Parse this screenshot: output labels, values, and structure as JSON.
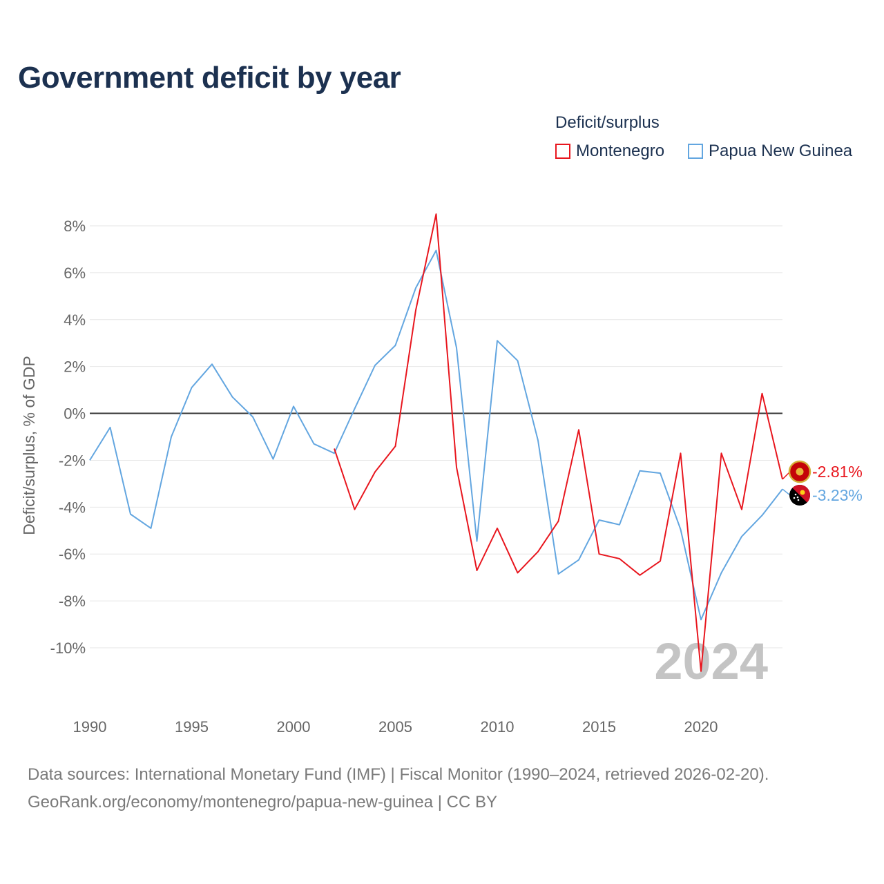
{
  "title": "Government deficit by year",
  "legend": {
    "title": "Deficit/surplus",
    "items": [
      {
        "label": "Montenegro",
        "color": "#e8161e"
      },
      {
        "label": "Papua New Guinea",
        "color": "#63a6e0"
      }
    ]
  },
  "chart_data": {
    "type": "line",
    "title": "Government deficit by year",
    "xlabel": "",
    "ylabel": "Deficit/surplus, % of GDP",
    "xlim": [
      1990,
      2024
    ],
    "ylim": [
      -12,
      8.5
    ],
    "x_ticks": [
      1990,
      1995,
      2000,
      2005,
      2010,
      2015,
      2020
    ],
    "y_ticks": [
      8,
      6,
      4,
      2,
      0,
      -2,
      -4,
      -6,
      -8,
      -10
    ],
    "y_tick_labels": [
      "8%",
      "6%",
      "4%",
      "2%",
      "0%",
      "-2%",
      "-4%",
      "-6%",
      "-8%",
      "-10%"
    ],
    "grid": true,
    "legend_position": "top-right",
    "year_watermark": "2024",
    "series": [
      {
        "name": "Montenegro",
        "color": "#e8161e",
        "end_label": "-2.81%",
        "end_marker_icon": "montenegro-flag-icon",
        "x": [
          2002,
          2003,
          2004,
          2005,
          2006,
          2007,
          2008,
          2009,
          2010,
          2011,
          2012,
          2013,
          2014,
          2015,
          2016,
          2017,
          2018,
          2019,
          2020,
          2021,
          2022,
          2023,
          2024
        ],
        "values": [
          -1.5,
          -4.1,
          -2.5,
          -1.4,
          4.4,
          8.5,
          -2.3,
          -6.7,
          -4.9,
          -6.8,
          -5.9,
          -4.6,
          -0.7,
          -6.0,
          -6.2,
          -6.9,
          -6.3,
          -1.7,
          -11.0,
          -1.7,
          -4.1,
          0.85,
          -2.81
        ]
      },
      {
        "name": "Papua New Guinea",
        "color": "#63a6e0",
        "end_label": "-3.23%",
        "end_marker_icon": "papua-new-guinea-flag-icon",
        "x": [
          1990,
          1991,
          1992,
          1993,
          1994,
          1995,
          1996,
          1997,
          1998,
          1999,
          2000,
          2001,
          2002,
          2003,
          2004,
          2005,
          2006,
          2007,
          2008,
          2009,
          2010,
          2011,
          2012,
          2013,
          2014,
          2015,
          2016,
          2017,
          2018,
          2019,
          2020,
          2021,
          2022,
          2023,
          2024
        ],
        "values": [
          -2.0,
          -0.6,
          -4.3,
          -4.9,
          -1.0,
          1.1,
          2.1,
          0.7,
          -0.15,
          -1.95,
          0.3,
          -1.3,
          -1.7,
          0.2,
          2.05,
          2.9,
          5.35,
          6.95,
          2.8,
          -5.45,
          3.1,
          2.25,
          -1.15,
          -6.85,
          -6.25,
          -4.55,
          -4.75,
          -2.45,
          -2.55,
          -4.95,
          -8.8,
          -6.8,
          -5.25,
          -4.35,
          -3.23
        ]
      }
    ]
  },
  "footer": {
    "line1": "Data sources: International Monetary Fund (IMF) | Fiscal Monitor (1990–2024, retrieved 2026-02-20).",
    "line2": "GeoRank.org/economy/montenegro/papua-new-guinea | CC BY"
  }
}
